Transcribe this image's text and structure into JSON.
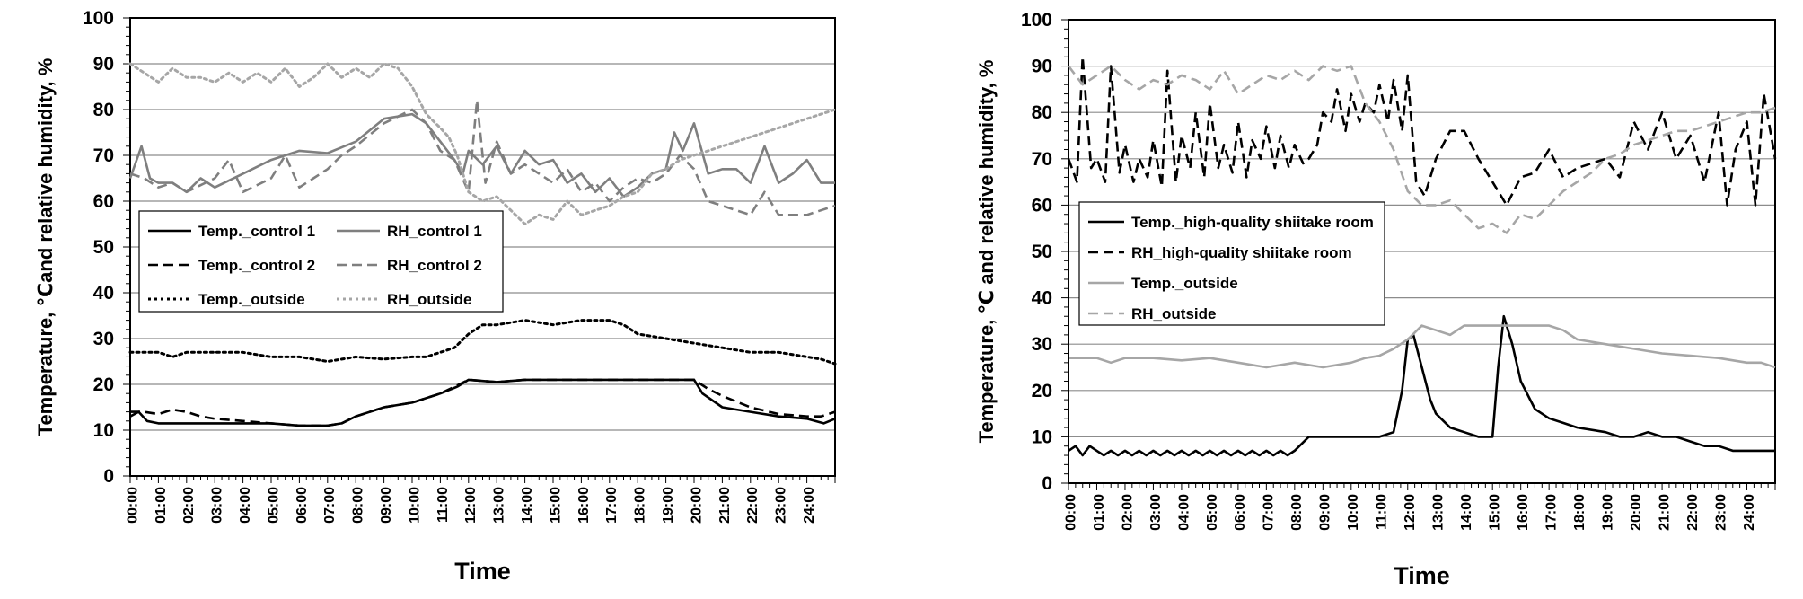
{
  "chart_data": [
    {
      "type": "line",
      "title": "",
      "xlabel": "Time",
      "ylabel": "Temperature, ℃and relative humidity, %",
      "ylim": [
        0,
        100
      ],
      "yticks": [
        0,
        10,
        20,
        30,
        40,
        50,
        60,
        70,
        80,
        90,
        100
      ],
      "xlim": [
        0,
        25
      ],
      "xtick_labels": [
        "00:00",
        "01:00",
        "02:00",
        "03:00",
        "04:00",
        "05:00",
        "06:00",
        "07:00",
        "08:00",
        "09:00",
        "10:00",
        "11:00",
        "12:00",
        "13:00",
        "14:00",
        "15:00",
        "16:00",
        "17:00",
        "18:00",
        "19:00",
        "20:00",
        "21:00",
        "22:00",
        "23:00",
        "24:00"
      ],
      "grid": "horizontal",
      "legend_position": "middle-left",
      "series": [
        {
          "name": "Temp._control 1",
          "color": "#000000",
          "style": "solid",
          "x": [
            0,
            0.3,
            0.6,
            1,
            2,
            3,
            4,
            5,
            6,
            7,
            7.5,
            8,
            9,
            10,
            11,
            11.6,
            12,
            13,
            14,
            15,
            16,
            17,
            18,
            19,
            20,
            20.3,
            21,
            22,
            23,
            24,
            24.6,
            25
          ],
          "values": [
            13,
            14,
            12,
            11.5,
            11.5,
            11.5,
            11.5,
            11.5,
            11,
            11,
            11.5,
            13,
            15,
            16,
            18,
            19.5,
            21,
            20.5,
            21,
            21,
            21,
            21,
            21,
            21,
            21,
            18,
            15,
            14,
            13,
            12.5,
            11.5,
            12.5
          ]
        },
        {
          "name": "RH_control 1",
          "color": "#7f7f7f",
          "style": "solid",
          "x": [
            0,
            0.4,
            0.7,
            1,
            1.5,
            2,
            2.5,
            3,
            4,
            5,
            6,
            7,
            8,
            9,
            10,
            10.5,
            11,
            11.5,
            11.8,
            12,
            12.5,
            13,
            13.5,
            14,
            14.5,
            15,
            15.5,
            16,
            16.5,
            17,
            17.5,
            18,
            18.5,
            19,
            19.3,
            19.6,
            20,
            20.5,
            21,
            21.5,
            22,
            22.5,
            23,
            23.5,
            24,
            24.5,
            25
          ],
          "values": [
            65,
            72,
            65,
            64,
            64,
            62,
            65,
            63,
            66,
            69,
            71,
            70.5,
            73,
            78,
            79,
            77,
            73,
            69,
            66,
            71,
            68,
            72,
            66,
            71,
            68,
            69,
            64,
            66,
            62,
            65,
            61,
            63,
            66,
            67,
            75,
            71,
            77,
            66,
            67,
            67,
            64,
            72,
            64,
            66,
            69,
            64,
            64
          ]
        },
        {
          "name": "Temp._control 2",
          "color": "#000000",
          "style": "dashed",
          "x": [
            0,
            0.5,
            1,
            1.5,
            2,
            2.5,
            3,
            4,
            5,
            6,
            7,
            7.5,
            8,
            9,
            10,
            11,
            11.5,
            12,
            13,
            14,
            15,
            16,
            17,
            18,
            19,
            20,
            20.5,
            21,
            22,
            23,
            24,
            24.5,
            25
          ],
          "values": [
            14,
            14,
            13.5,
            14.5,
            14,
            13,
            12.5,
            12,
            11.5,
            11,
            11,
            11.5,
            13,
            15,
            16,
            18,
            19.5,
            21,
            20.5,
            21,
            21,
            21,
            21,
            21,
            21,
            21,
            19,
            17.5,
            15,
            13.5,
            13,
            13,
            14
          ]
        },
        {
          "name": "RH_control 2",
          "color": "#7f7f7f",
          "style": "dashed",
          "x": [
            0,
            0.5,
            1,
            1.5,
            2,
            3,
            3.5,
            4,
            5,
            5.5,
            6,
            6.5,
            7,
            7.5,
            8,
            9,
            10,
            10.5,
            11,
            11.5,
            12,
            12.3,
            12.6,
            13,
            13.5,
            14,
            14.5,
            15,
            15.5,
            16,
            16.5,
            17,
            17.5,
            18,
            18.5,
            19,
            19.5,
            20,
            20.5,
            21,
            21.5,
            22,
            22.5,
            23,
            24,
            24.5,
            25
          ],
          "values": [
            66,
            65,
            63,
            64,
            62,
            65,
            69,
            62,
            65,
            70,
            63,
            65,
            67,
            70,
            72,
            77,
            80,
            77,
            71,
            69,
            62,
            82,
            64,
            73,
            66,
            68,
            66,
            64,
            67,
            62,
            64,
            60,
            63,
            65,
            64,
            66,
            70,
            67,
            60,
            59,
            58,
            57,
            62,
            57,
            57,
            58,
            59
          ]
        },
        {
          "name": "Temp._outside",
          "color": "#000000",
          "style": "dotted",
          "x": [
            0,
            0.5,
            1,
            1.5,
            2,
            3,
            4,
            5,
            6,
            7,
            8,
            9,
            10,
            10.5,
            11,
            11.5,
            12,
            12.5,
            13,
            14,
            15,
            16,
            17,
            17.5,
            18,
            19,
            20,
            21,
            22,
            23,
            24,
            24.5,
            25
          ],
          "values": [
            27,
            27,
            27,
            26,
            27,
            27,
            27,
            26,
            26,
            25,
            26,
            25.5,
            26,
            26,
            27,
            28,
            31,
            33,
            33,
            34,
            33,
            34,
            34,
            33,
            31,
            30,
            29,
            28,
            27,
            27,
            26,
            25.5,
            24.5
          ]
        },
        {
          "name": "RH_outside",
          "color": "#a6a6a6",
          "style": "dotted",
          "x": [
            0,
            0.5,
            1,
            1.5,
            2,
            2.5,
            3,
            3.5,
            4,
            4.5,
            5,
            5.5,
            6,
            6.5,
            7,
            7.5,
            8,
            8.5,
            9,
            9.5,
            10,
            10.5,
            11,
            11.3,
            11.6,
            12,
            12.5,
            13,
            13.5,
            14,
            14.5,
            15,
            15.5,
            16,
            16.5,
            17,
            17.5,
            18,
            18.5,
            19,
            19.5,
            20,
            20.5,
            21,
            21.5,
            22,
            22.5,
            23,
            23.5,
            24,
            24.5,
            25
          ],
          "values": [
            90,
            88,
            86,
            89,
            87,
            87,
            86,
            88,
            86,
            88,
            86,
            89,
            85,
            87,
            90,
            87,
            89,
            87,
            90,
            89,
            85,
            79,
            76,
            74,
            70,
            62,
            60,
            61,
            58,
            55,
            57,
            56,
            60,
            57,
            58,
            59,
            61,
            62,
            66,
            67,
            69,
            70,
            71,
            72,
            73,
            74,
            75,
            76,
            77,
            78,
            79,
            80
          ]
        }
      ]
    },
    {
      "type": "line",
      "title": "",
      "xlabel": "Time",
      "ylabel": "Temperature, ℃ and relative humidity, %",
      "ylim": [
        0,
        100
      ],
      "yticks": [
        0,
        10,
        20,
        30,
        40,
        50,
        60,
        70,
        80,
        90,
        100
      ],
      "xlim": [
        0,
        25
      ],
      "xtick_labels": [
        "00:00",
        "01:00",
        "02:00",
        "03:00",
        "04:00",
        "05:00",
        "06:00",
        "07:00",
        "08:00",
        "09:00",
        "10:00",
        "11:00",
        "12:00",
        "13:00",
        "14:00",
        "15:00",
        "16:00",
        "17:00",
        "18:00",
        "19:00",
        "20:00",
        "21:00",
        "22:00",
        "23:00",
        "24:00"
      ],
      "grid": "horizontal",
      "legend_position": "middle-left",
      "series": [
        {
          "name": "Temp._high-quality shiitake room",
          "color": "#000000",
          "style": "solid",
          "x": [
            0,
            0.25,
            0.5,
            0.75,
            1,
            1.25,
            1.5,
            1.75,
            2,
            2.25,
            2.5,
            2.75,
            3,
            3.25,
            3.5,
            3.75,
            4,
            4.25,
            4.5,
            4.75,
            5,
            5.25,
            5.5,
            5.75,
            6,
            6.25,
            6.5,
            6.75,
            7,
            7.25,
            7.5,
            7.75,
            8,
            8.5,
            9,
            9.5,
            10,
            10.5,
            11,
            11.5,
            11.8,
            12,
            12.2,
            12.5,
            12.8,
            13,
            13.5,
            14,
            14.5,
            15,
            15.2,
            15.4,
            15.7,
            16,
            16.5,
            17,
            17.5,
            18,
            19,
            19.5,
            20,
            20.5,
            21,
            21.5,
            22,
            22.5,
            23,
            23.5,
            24,
            24.5,
            25
          ],
          "values": [
            7,
            8,
            6,
            8,
            7,
            6,
            7,
            6,
            7,
            6,
            7,
            6,
            7,
            6,
            7,
            6,
            7,
            6,
            7,
            6,
            7,
            6,
            7,
            6,
            7,
            6,
            7,
            6,
            7,
            6,
            7,
            6,
            7,
            10,
            10,
            10,
            10,
            10,
            10,
            11,
            20,
            31,
            32,
            25,
            18,
            15,
            12,
            11,
            10,
            10,
            25,
            36,
            30,
            22,
            16,
            14,
            13,
            12,
            11,
            10,
            10,
            11,
            10,
            10,
            9,
            8,
            8,
            7,
            7,
            7,
            7
          ]
        },
        {
          "name": "RH_high-quality shiitake room",
          "color": "#000000",
          "style": "dashed",
          "x": [
            0,
            0.3,
            0.5,
            0.8,
            1,
            1.3,
            1.5,
            1.8,
            2,
            2.3,
            2.5,
            2.8,
            3,
            3.3,
            3.5,
            3.8,
            4,
            4.3,
            4.5,
            4.8,
            5,
            5.3,
            5.5,
            5.8,
            6,
            6.3,
            6.5,
            6.8,
            7,
            7.3,
            7.5,
            7.8,
            8,
            8.3,
            8.5,
            8.8,
            9,
            9.3,
            9.5,
            9.8,
            10,
            10.3,
            10.5,
            10.8,
            11,
            11.3,
            11.5,
            11.8,
            12,
            12.3,
            12.6,
            13,
            13.5,
            14,
            14.5,
            15,
            15.5,
            16,
            16.5,
            17,
            17.5,
            18,
            18.5,
            19,
            19.5,
            20,
            20.5,
            21,
            21.5,
            22,
            22.5,
            23,
            23.3,
            23.6,
            24,
            24.3,
            24.6,
            25
          ],
          "values": [
            70,
            65,
            92,
            68,
            70,
            65,
            90,
            67,
            73,
            65,
            70,
            66,
            74,
            64,
            89,
            65,
            75,
            68,
            80,
            66,
            82,
            68,
            73,
            67,
            78,
            66,
            74,
            70,
            77,
            68,
            75,
            68,
            73,
            69,
            70,
            73,
            80,
            78,
            85,
            76,
            84,
            78,
            82,
            80,
            86,
            78,
            87,
            76,
            88,
            65,
            62,
            70,
            76,
            76,
            70,
            65,
            60,
            66,
            67,
            72,
            66,
            68,
            69,
            70,
            66,
            78,
            72,
            80,
            70,
            75,
            65,
            80,
            60,
            72,
            78,
            60,
            84,
            70
          ]
        },
        {
          "name": "Temp._outside",
          "color": "#a6a6a6",
          "style": "solid",
          "x": [
            0,
            0.5,
            1,
            1.5,
            2,
            3,
            4,
            5,
            6,
            7,
            8,
            9,
            10,
            10.5,
            11,
            11.5,
            12,
            12.5,
            13,
            13.5,
            14,
            15,
            16,
            17,
            17.5,
            18,
            19,
            20,
            21,
            22,
            23,
            24,
            24.5,
            25
          ],
          "values": [
            27,
            27,
            27,
            26,
            27,
            27,
            26.5,
            27,
            26,
            25,
            26,
            25,
            26,
            27,
            27.5,
            29,
            31,
            34,
            33,
            32,
            34,
            34,
            34,
            34,
            33,
            31,
            30,
            29,
            28,
            27.5,
            27,
            26,
            26,
            25
          ]
        },
        {
          "name": "RH_outside",
          "color": "#a6a6a6",
          "style": "dashed",
          "x": [
            0,
            0.5,
            1,
            1.5,
            2,
            2.5,
            3,
            3.5,
            4,
            4.5,
            5,
            5.5,
            6,
            6.5,
            7,
            7.5,
            8,
            8.5,
            9,
            9.5,
            10,
            10.5,
            11,
            11.5,
            12,
            12.5,
            13,
            13.5,
            14,
            14.5,
            15,
            15.5,
            16,
            16.5,
            17,
            17.5,
            18,
            18.5,
            19,
            19.5,
            20,
            20.5,
            21,
            21.5,
            22,
            22.5,
            23,
            23.5,
            24,
            24.5,
            25
          ],
          "values": [
            90,
            86,
            88,
            90,
            87,
            85,
            87,
            86,
            88,
            87,
            85,
            89,
            84,
            86,
            88,
            87,
            89,
            87,
            90,
            89,
            90,
            82,
            78,
            72,
            63,
            60,
            60,
            61,
            58,
            55,
            56,
            54,
            58,
            57,
            60,
            63,
            65,
            67,
            70,
            71,
            73,
            74,
            75,
            76,
            76,
            77,
            78,
            79,
            80,
            80,
            81
          ]
        }
      ]
    }
  ]
}
